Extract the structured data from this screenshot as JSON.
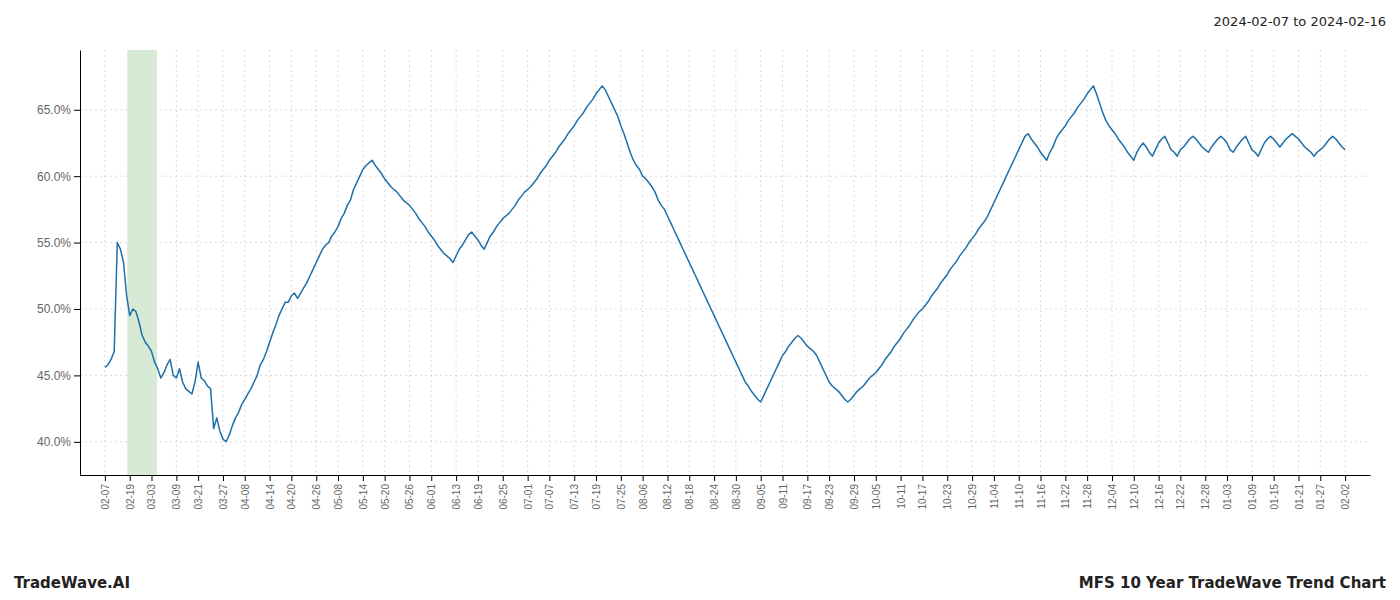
{
  "chart_data": {
    "type": "line",
    "title": "MFS 10 Year TradeWave Trend Chart",
    "subtitle": "2024-02-07 to 2024-02-16",
    "annotations": [
      "TradeWave.AI"
    ],
    "color": "#1f6fa8",
    "grid": true,
    "ylim": [
      0.375,
      0.695
    ],
    "yticks": [
      {
        "value": 0.4,
        "label": "40.0%"
      },
      {
        "value": 0.45,
        "label": "45.0%"
      },
      {
        "value": 0.5,
        "label": "50.0%"
      },
      {
        "value": 0.55,
        "label": "55.0%"
      },
      {
        "value": 0.6,
        "label": "60.0%"
      },
      {
        "value": 0.65,
        "label": "65.0%"
      }
    ],
    "highlight": {
      "x": [
        7.2,
        16.8
      ],
      "color": "#d6ead6"
    },
    "categories": [
      "02-07",
      null,
      null,
      null,
      null,
      null,
      null,
      null,
      "02-19",
      null,
      null,
      null,
      null,
      null,
      null,
      "03-03",
      null,
      null,
      null,
      null,
      null,
      null,
      null,
      "03-09",
      null,
      null,
      null,
      null,
      null,
      null,
      "03-21",
      null,
      null,
      null,
      null,
      null,
      null,
      null,
      "03-27",
      null,
      null,
      null,
      null,
      null,
      null,
      "04-08",
      null,
      null,
      null,
      null,
      null,
      null,
      null,
      "04-14",
      null,
      null,
      null,
      null,
      null,
      null,
      "04-20",
      null,
      null,
      null,
      null,
      null,
      null,
      null,
      "04-26",
      null,
      null,
      null,
      null,
      null,
      null,
      "05-08",
      null,
      null,
      null,
      null,
      null,
      null,
      null,
      "05-14",
      null,
      null,
      null,
      null,
      null,
      null,
      "05-20",
      null,
      null,
      null,
      null,
      null,
      null,
      null,
      "05-26",
      null,
      null,
      null,
      null,
      null,
      null,
      "06-01",
      null,
      null,
      null,
      null,
      null,
      null,
      null,
      "06-13",
      null,
      null,
      null,
      null,
      null,
      null,
      "06-19",
      null,
      null,
      null,
      null,
      null,
      null,
      null,
      "06-25",
      null,
      null,
      null,
      null,
      null,
      null,
      null,
      "07-01",
      null,
      null,
      null,
      null,
      null,
      null,
      "07-07",
      null,
      null,
      null,
      null,
      null,
      null,
      null,
      "07-13",
      null,
      null,
      null,
      null,
      null,
      null,
      "07-19",
      null,
      null,
      null,
      null,
      null,
      null,
      null,
      "07-25",
      null,
      null,
      null,
      null,
      null,
      null,
      "08-06",
      null,
      null,
      null,
      null,
      null,
      null,
      null,
      "08-12",
      null,
      null,
      null,
      null,
      null,
      null,
      "08-18",
      null,
      null,
      null,
      null,
      null,
      null,
      null,
      "08-24",
      null,
      null,
      null,
      null,
      null,
      null,
      "08-30",
      null,
      null,
      null,
      null,
      null,
      null,
      null,
      "09-05",
      null,
      null,
      null,
      null,
      null,
      null,
      "09-11",
      null,
      null,
      null,
      null,
      null,
      null,
      null,
      "09-17",
      null,
      null,
      null,
      null,
      null,
      null,
      "09-23",
      null,
      null,
      null,
      null,
      null,
      null,
      null,
      "09-29",
      null,
      null,
      null,
      null,
      null,
      null,
      "10-05",
      null,
      null,
      null,
      null,
      null,
      null,
      null,
      "10-11",
      null,
      null,
      null,
      null,
      null,
      null,
      "10-17",
      null,
      null,
      null,
      null,
      null,
      null,
      null,
      "10-23",
      null,
      null,
      null,
      null,
      null,
      null,
      null,
      "10-29",
      null,
      null,
      null,
      null,
      null,
      null,
      "11-04",
      null,
      null,
      null,
      null,
      null,
      null,
      null,
      "11-10",
      null,
      null,
      null,
      null,
      null,
      null,
      "11-16",
      null,
      null,
      null,
      null,
      null,
      null,
      null,
      "11-22",
      null,
      null,
      null,
      null,
      null,
      null,
      "11-28",
      null,
      null,
      null,
      null,
      null,
      null,
      null,
      "12-04",
      null,
      null,
      null,
      null,
      null,
      null,
      "12-10",
      null,
      null,
      null,
      null,
      null,
      null,
      null,
      "12-16",
      null,
      null,
      null,
      null,
      null,
      null,
      "12-22",
      null,
      null,
      null,
      null,
      null,
      null,
      null,
      "12-28",
      null,
      null,
      null,
      null,
      null,
      null,
      "01-03",
      null,
      null,
      null,
      null,
      null,
      null,
      null,
      "01-09",
      null,
      null,
      null,
      null,
      null,
      null,
      "01-15",
      null,
      null,
      null,
      null,
      null,
      null,
      null,
      "01-21",
      null,
      null,
      null,
      null,
      null,
      null,
      "01-27",
      null,
      null,
      null,
      null,
      null,
      null,
      null,
      "02-02"
    ],
    "values": [
      0.456,
      0.458,
      0.462,
      0.468,
      0.55,
      0.545,
      0.535,
      0.51,
      0.495,
      0.5,
      0.498,
      0.49,
      0.48,
      0.475,
      0.472,
      0.468,
      0.46,
      0.455,
      0.448,
      0.452,
      0.458,
      0.462,
      0.45,
      0.448,
      0.455,
      0.445,
      0.44,
      0.438,
      0.436,
      0.445,
      0.46,
      0.448,
      0.446,
      0.442,
      0.44,
      0.41,
      0.418,
      0.408,
      0.402,
      0.4,
      0.405,
      0.412,
      0.418,
      0.422,
      0.428,
      0.432,
      0.436,
      0.44,
      0.445,
      0.45,
      0.458,
      0.462,
      0.468,
      0.475,
      0.482,
      0.488,
      0.495,
      0.5,
      0.505,
      0.505,
      0.51,
      0.512,
      0.508,
      0.512,
      0.516,
      0.52,
      0.525,
      0.53,
      0.535,
      0.54,
      0.545,
      0.548,
      0.55,
      0.555,
      0.558,
      0.562,
      0.568,
      0.572,
      0.578,
      0.582,
      0.59,
      0.595,
      0.6,
      0.605,
      0.608,
      0.61,
      0.612,
      0.608,
      0.605,
      0.602,
      0.598,
      0.595,
      0.592,
      0.59,
      0.588,
      0.585,
      0.582,
      0.58,
      0.578,
      0.575,
      0.572,
      0.568,
      0.565,
      0.562,
      0.558,
      0.555,
      0.552,
      0.548,
      0.545,
      0.542,
      0.54,
      0.538,
      0.535,
      0.54,
      0.545,
      0.548,
      0.552,
      0.556,
      0.558,
      0.555,
      0.552,
      0.548,
      0.545,
      0.55,
      0.555,
      0.558,
      0.562,
      0.565,
      0.568,
      0.57,
      0.572,
      0.575,
      0.578,
      0.582,
      0.585,
      0.588,
      0.59,
      0.592,
      0.595,
      0.598,
      0.602,
      0.605,
      0.608,
      0.612,
      0.615,
      0.618,
      0.622,
      0.625,
      0.628,
      0.632,
      0.635,
      0.638,
      0.642,
      0.645,
      0.648,
      0.652,
      0.655,
      0.658,
      0.662,
      0.665,
      0.668,
      0.665,
      0.66,
      0.655,
      0.65,
      0.645,
      0.638,
      0.632,
      0.625,
      0.618,
      0.612,
      0.608,
      0.605,
      0.6,
      0.598,
      0.595,
      0.592,
      0.588,
      0.582,
      0.578,
      0.575,
      0.57,
      0.565,
      0.56,
      0.555,
      0.55,
      0.545,
      0.54,
      0.535,
      0.53,
      0.525,
      0.52,
      0.515,
      0.51,
      0.505,
      0.5,
      0.495,
      0.49,
      0.485,
      0.48,
      0.475,
      0.47,
      0.465,
      0.46,
      0.455,
      0.45,
      0.445,
      0.442,
      0.438,
      0.435,
      0.432,
      0.43,
      0.435,
      0.44,
      0.445,
      0.45,
      0.455,
      0.46,
      0.465,
      0.468,
      0.472,
      0.475,
      0.478,
      0.48,
      0.478,
      0.475,
      0.472,
      0.47,
      0.468,
      0.465,
      0.46,
      0.455,
      0.45,
      0.445,
      0.442,
      0.44,
      0.438,
      0.435,
      0.432,
      0.43,
      0.432,
      0.435,
      0.438,
      0.44,
      0.442,
      0.445,
      0.448,
      0.45,
      0.452,
      0.455,
      0.458,
      0.462,
      0.465,
      0.468,
      0.472,
      0.475,
      0.478,
      0.482,
      0.485,
      0.488,
      0.492,
      0.495,
      0.498,
      0.5,
      0.503,
      0.506,
      0.51,
      0.513,
      0.516,
      0.52,
      0.523,
      0.526,
      0.53,
      0.533,
      0.536,
      0.54,
      0.543,
      0.546,
      0.55,
      0.553,
      0.556,
      0.56,
      0.563,
      0.566,
      0.57,
      0.575,
      0.58,
      0.585,
      0.59,
      0.595,
      0.6,
      0.605,
      0.61,
      0.615,
      0.62,
      0.625,
      0.63,
      0.632,
      0.628,
      0.625,
      0.622,
      0.618,
      0.615,
      0.612,
      0.618,
      0.622,
      0.628,
      0.632,
      0.635,
      0.638,
      0.642,
      0.645,
      0.648,
      0.652,
      0.655,
      0.658,
      0.662,
      0.665,
      0.668,
      0.662,
      0.655,
      0.648,
      0.642,
      0.638,
      0.635,
      0.632,
      0.628,
      0.625,
      0.622,
      0.618,
      0.615,
      0.612,
      0.618,
      0.622,
      0.625,
      0.622,
      0.618,
      0.615,
      0.62,
      0.625,
      0.628,
      0.63,
      0.625,
      0.62,
      0.618,
      0.615,
      0.62,
      0.622,
      0.625,
      0.628,
      0.63,
      0.628,
      0.625,
      0.622,
      0.62,
      0.618,
      0.622,
      0.625,
      0.628,
      0.63,
      0.628,
      0.625,
      0.62,
      0.618,
      0.622,
      0.625,
      0.628,
      0.63,
      0.625,
      0.62,
      0.618,
      0.615,
      0.62,
      0.625,
      0.628,
      0.63,
      0.628,
      0.625,
      0.622,
      0.625,
      0.628,
      0.63,
      0.632,
      0.63,
      0.628,
      0.625,
      0.622,
      0.62,
      0.618,
      0.615,
      0.618,
      0.62,
      0.622,
      0.625,
      0.628,
      0.63,
      0.628,
      0.625,
      0.622,
      0.62
    ]
  }
}
